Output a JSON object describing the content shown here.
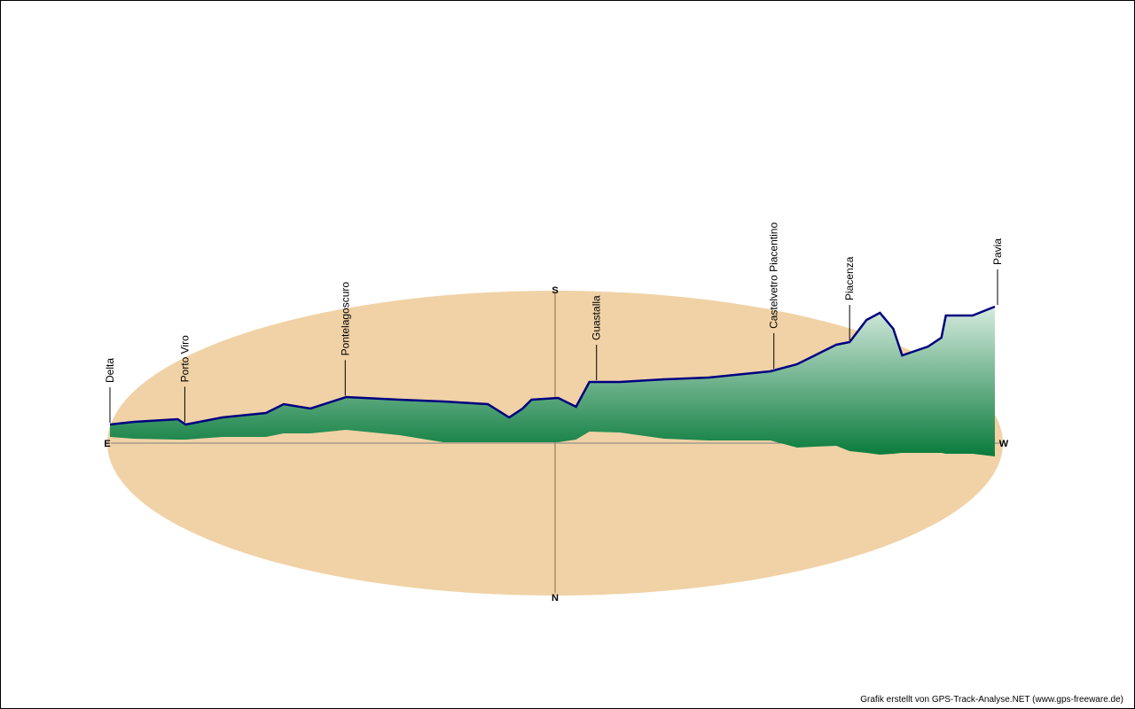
{
  "chart_data": {
    "type": "area",
    "title": "",
    "description_units": "profile: distance along track in % , relative elevation and terrain base offset in arbitrary units",
    "compass": {
      "south": "S",
      "north": "N",
      "east": "E",
      "west": "W"
    },
    "profile": {
      "distance_pct": [
        0,
        2.7,
        7.6,
        8.5,
        12.6,
        17.5,
        19.5,
        22.5,
        26.5,
        32.5,
        37.4,
        42.4,
        44.8,
        46.3,
        47.3,
        50.3,
        52.3,
        53.8,
        57.2,
        62.2,
        67.2,
        72.1,
        74.1,
        77.1,
        79.1,
        81.5,
        83.0,
        84.9,
        86.4,
        87.9,
        88.9,
        91.8,
        93.3,
        93.8,
        96.8,
        99.3
      ],
      "elevation": [
        22,
        25,
        28,
        22,
        30,
        35,
        45,
        40,
        53,
        50,
        48,
        45,
        30,
        40,
        50,
        52,
        42,
        70,
        70,
        73,
        75,
        80,
        82,
        90,
        100,
        112,
        115,
        140,
        148,
        130,
        100,
        110,
        120,
        145,
        145,
        155
      ],
      "base": [
        -8,
        -6,
        -5,
        -5,
        -8,
        -8,
        -12,
        -12,
        -16,
        -10,
        -2,
        -2,
        -2,
        -2,
        -2,
        -2,
        -5,
        -14,
        -13,
        -6,
        -4,
        -4,
        -4,
        4,
        3,
        2,
        8,
        10,
        12,
        11,
        10,
        10,
        10,
        11,
        11,
        14
      ]
    },
    "places": [
      {
        "name": "Delta",
        "distance_pct": 0.0
      },
      {
        "name": "Porto Viro",
        "distance_pct": 8.4
      },
      {
        "name": "Pontelagoscuro",
        "distance_pct": 26.4
      },
      {
        "name": "Guastalla",
        "distance_pct": 54.6
      },
      {
        "name": "Castelvetro Piacentino",
        "distance_pct": 74.5
      },
      {
        "name": "Piacenza",
        "distance_pct": 83.0
      },
      {
        "name": "Pavia",
        "distance_pct": 99.6
      }
    ],
    "colors": {
      "ground": "#f0d2a6",
      "line": "#000080",
      "fill_top": "#e2f1e8",
      "fill_bottom": "#077a3a"
    }
  },
  "footer": "Grafik erstellt von GPS-Track-Analyse.NET (www.gps-freeware.de)"
}
